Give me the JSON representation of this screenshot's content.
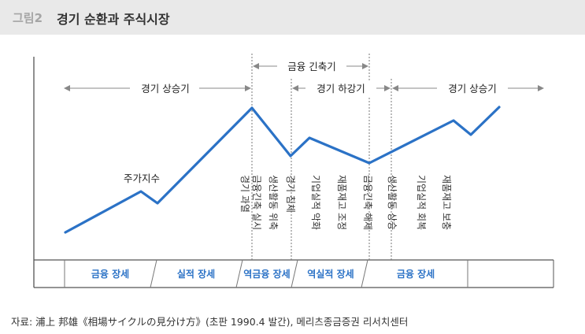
{
  "header": {
    "figure_label": "그림2",
    "title": "경기 순환과 주식시장"
  },
  "diagram": {
    "curve_label": "주가지수",
    "colors": {
      "curve": "#2b72c6",
      "band_text": "#2b72c6",
      "arrow": "#888888",
      "axis": "#555555"
    },
    "top_arrows": [
      {
        "label": "금융 긴축기"
      },
      {
        "label": "경기 상승기"
      },
      {
        "label": "경기 하강기"
      },
      {
        "label": "경기 상승기"
      }
    ],
    "event_labels": [
      {
        "line1": "경기 과열",
        "line2": "금융긴축 실시"
      },
      {
        "line1": "생산활동 위축",
        "line2": ""
      },
      {
        "line1": "경기 침체",
        "line2": ""
      },
      {
        "line1": "기업실적 악화",
        "line2": ""
      },
      {
        "line1": "재품재고 조정",
        "line2": ""
      },
      {
        "line1": "금융긴축 해제",
        "line2": ""
      },
      {
        "line1": "생산활동 상승",
        "line2": ""
      },
      {
        "line1": "기업실적 회복",
        "line2": ""
      },
      {
        "line1": "재품재고 보충",
        "line2": ""
      }
    ],
    "phases": [
      {
        "label": "금융 장세"
      },
      {
        "label": "실적 장세"
      },
      {
        "label": "역금융 장세"
      },
      {
        "label": "역실적 장세"
      },
      {
        "label": "금융 장세"
      }
    ]
  },
  "source": "자료: 浦上 邦雄《相場サイクルの見分け方》(초판 1990.4 발간), 메리츠종금증권 리서치센터"
}
